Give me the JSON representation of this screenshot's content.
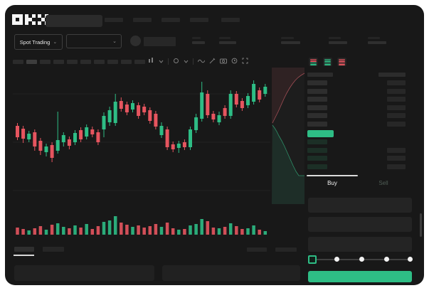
{
  "app_title": "OKX Spot Trading",
  "header": {
    "logo_text": "OKX",
    "nav_items": 5
  },
  "subheader": {
    "market_selector": {
      "label": "Spot Trading",
      "chevron": "⌄"
    },
    "pair_selector": {
      "chevron": "⌄"
    },
    "ticker_stats": 5
  },
  "toolbar": {
    "timeframe_slots": 10,
    "active_slot": 1,
    "icons": [
      "indicator-icon",
      "chevron-down-icon",
      "compare-icon",
      "chevron-down-icon",
      "line-tool-icon",
      "pencil-icon",
      "camera-icon",
      "clock-icon",
      "expand-icon"
    ]
  },
  "order_book": {
    "layout_toggles": [
      {
        "name": "book-both",
        "bars": [
          "red",
          "red",
          "green",
          "green"
        ]
      },
      {
        "name": "book-bids",
        "bars": [
          "green",
          "green",
          "green",
          "green"
        ]
      },
      {
        "name": "book-asks",
        "bars": [
          "red",
          "red",
          "red",
          "red"
        ]
      }
    ],
    "ask_rows": 6,
    "bid_rows": 4,
    "bid_rows_with_amount": [
      1,
      2,
      3
    ],
    "last_price_color": "#2ebd85"
  },
  "trade_panel": {
    "tabs": [
      {
        "label": "Buy",
        "active": true
      },
      {
        "label": "Sell",
        "active": false
      }
    ],
    "input_fields": 3,
    "slider_stops": 5,
    "slider_active_stop": 0,
    "submit_color": "#2ebd85"
  },
  "colors": {
    "up": "#2ebd85",
    "down": "#e6555f",
    "window_bg": "#181818",
    "grid": "#222222",
    "depth_ask_fill": "rgba(230,85,95,0.09)",
    "depth_bid_fill": "rgba(46,189,133,0.11)",
    "depth_ask_line": "#a14e55",
    "depth_bid_line": "#2e8f68"
  },
  "chart_data": {
    "type": "candlestick",
    "title": "",
    "xlabel": "",
    "ylabel": "",
    "axes_visible": false,
    "grid_y_levels": [
      168,
      100,
      32
    ],
    "price_scale_note": "relative units, no axis labels visible in screenshot",
    "candles_ohlcv": [
      [
        123,
        127,
        103,
        107,
        10
      ],
      [
        119,
        123,
        99,
        105,
        8
      ],
      [
        104,
        116,
        100,
        112,
        6
      ],
      [
        114,
        118,
        88,
        94,
        9
      ],
      [
        102,
        106,
        82,
        88,
        12
      ],
      [
        86,
        98,
        80,
        94,
        7
      ],
      [
        96,
        100,
        72,
        78,
        14
      ],
      [
        88,
        143,
        84,
        103,
        16
      ],
      [
        100,
        114,
        94,
        110,
        11
      ],
      [
        104,
        108,
        90,
        95,
        9
      ],
      [
        100,
        117,
        96,
        113,
        13
      ],
      [
        117,
        121,
        100,
        104,
        10
      ],
      [
        108,
        125,
        104,
        121,
        15
      ],
      [
        118,
        122,
        107,
        111,
        8
      ],
      [
        114,
        118,
        96,
        100,
        12
      ],
      [
        118,
        142,
        107,
        137,
        18
      ],
      [
        128,
        150,
        123,
        145,
        20
      ],
      [
        127,
        168,
        123,
        157,
        26
      ],
      [
        158,
        163,
        143,
        147,
        17
      ],
      [
        153,
        157,
        138,
        142,
        14
      ],
      [
        146,
        159,
        142,
        155,
        11
      ],
      [
        152,
        156,
        133,
        137,
        13
      ],
      [
        150,
        154,
        138,
        142,
        10
      ],
      [
        145,
        149,
        126,
        130,
        12
      ],
      [
        140,
        144,
        118,
        122,
        15
      ],
      [
        110,
        128,
        106,
        123,
        11
      ],
      [
        118,
        122,
        89,
        93,
        17
      ],
      [
        97,
        101,
        86,
        90,
        9
      ],
      [
        92,
        102,
        85,
        98,
        7
      ],
      [
        100,
        104,
        89,
        93,
        8
      ],
      [
        93,
        122,
        89,
        118,
        13
      ],
      [
        117,
        140,
        113,
        135,
        15
      ],
      [
        133,
        185,
        129,
        170,
        22
      ],
      [
        168,
        173,
        134,
        138,
        19
      ],
      [
        140,
        144,
        128,
        132,
        10
      ],
      [
        128,
        143,
        124,
        138,
        9
      ],
      [
        148,
        152,
        133,
        137,
        11
      ],
      [
        137,
        173,
        133,
        168,
        16
      ],
      [
        168,
        172,
        149,
        153,
        12
      ],
      [
        158,
        162,
        144,
        148,
        8
      ],
      [
        152,
        169,
        148,
        165,
        9
      ],
      [
        157,
        187,
        153,
        182,
        13
      ],
      [
        173,
        177,
        156,
        160,
        7
      ],
      [
        168,
        182,
        164,
        178,
        5
      ]
    ],
    "depth": {
      "asks_line": [
        [
          46,
          8
        ],
        [
          41,
          11
        ],
        [
          37,
          14
        ],
        [
          33,
          18
        ],
        [
          29,
          23
        ],
        [
          25,
          29
        ],
        [
          21,
          36
        ],
        [
          17,
          44
        ],
        [
          13,
          53
        ],
        [
          9,
          62
        ],
        [
          5,
          70
        ],
        [
          1,
          78
        ]
      ],
      "bids_line": [
        [
          1,
          81
        ],
        [
          4,
          85
        ],
        [
          7,
          90
        ],
        [
          10,
          96
        ],
        [
          14,
          103
        ],
        [
          18,
          111
        ],
        [
          22,
          120
        ],
        [
          26,
          129
        ],
        [
          30,
          138
        ],
        [
          34,
          146
        ],
        [
          38,
          152
        ],
        [
          46,
          152
        ]
      ]
    }
  }
}
